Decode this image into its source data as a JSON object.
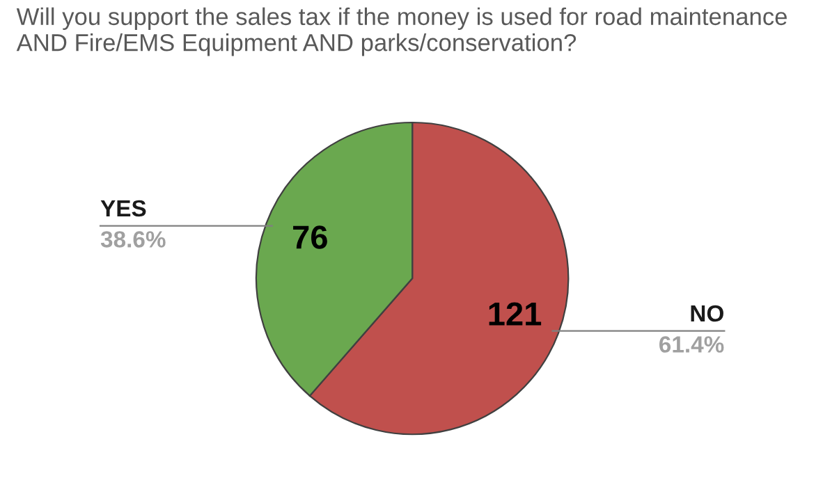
{
  "chart_data": {
    "type": "pie",
    "title": "Will you support the sales tax if the money is used for road maintenance AND Fire/EMS Equipment AND parks/conservation?",
    "categories": [
      "NO",
      "YES"
    ],
    "values": [
      121,
      76
    ],
    "colors": [
      "#c0504d",
      "#6aa84f"
    ],
    "value_labels": [
      "121",
      "76"
    ],
    "annotations": [
      {
        "text": "61.4%",
        "x": "NO"
      },
      {
        "text": "38.6%",
        "x": "YES"
      }
    ]
  }
}
